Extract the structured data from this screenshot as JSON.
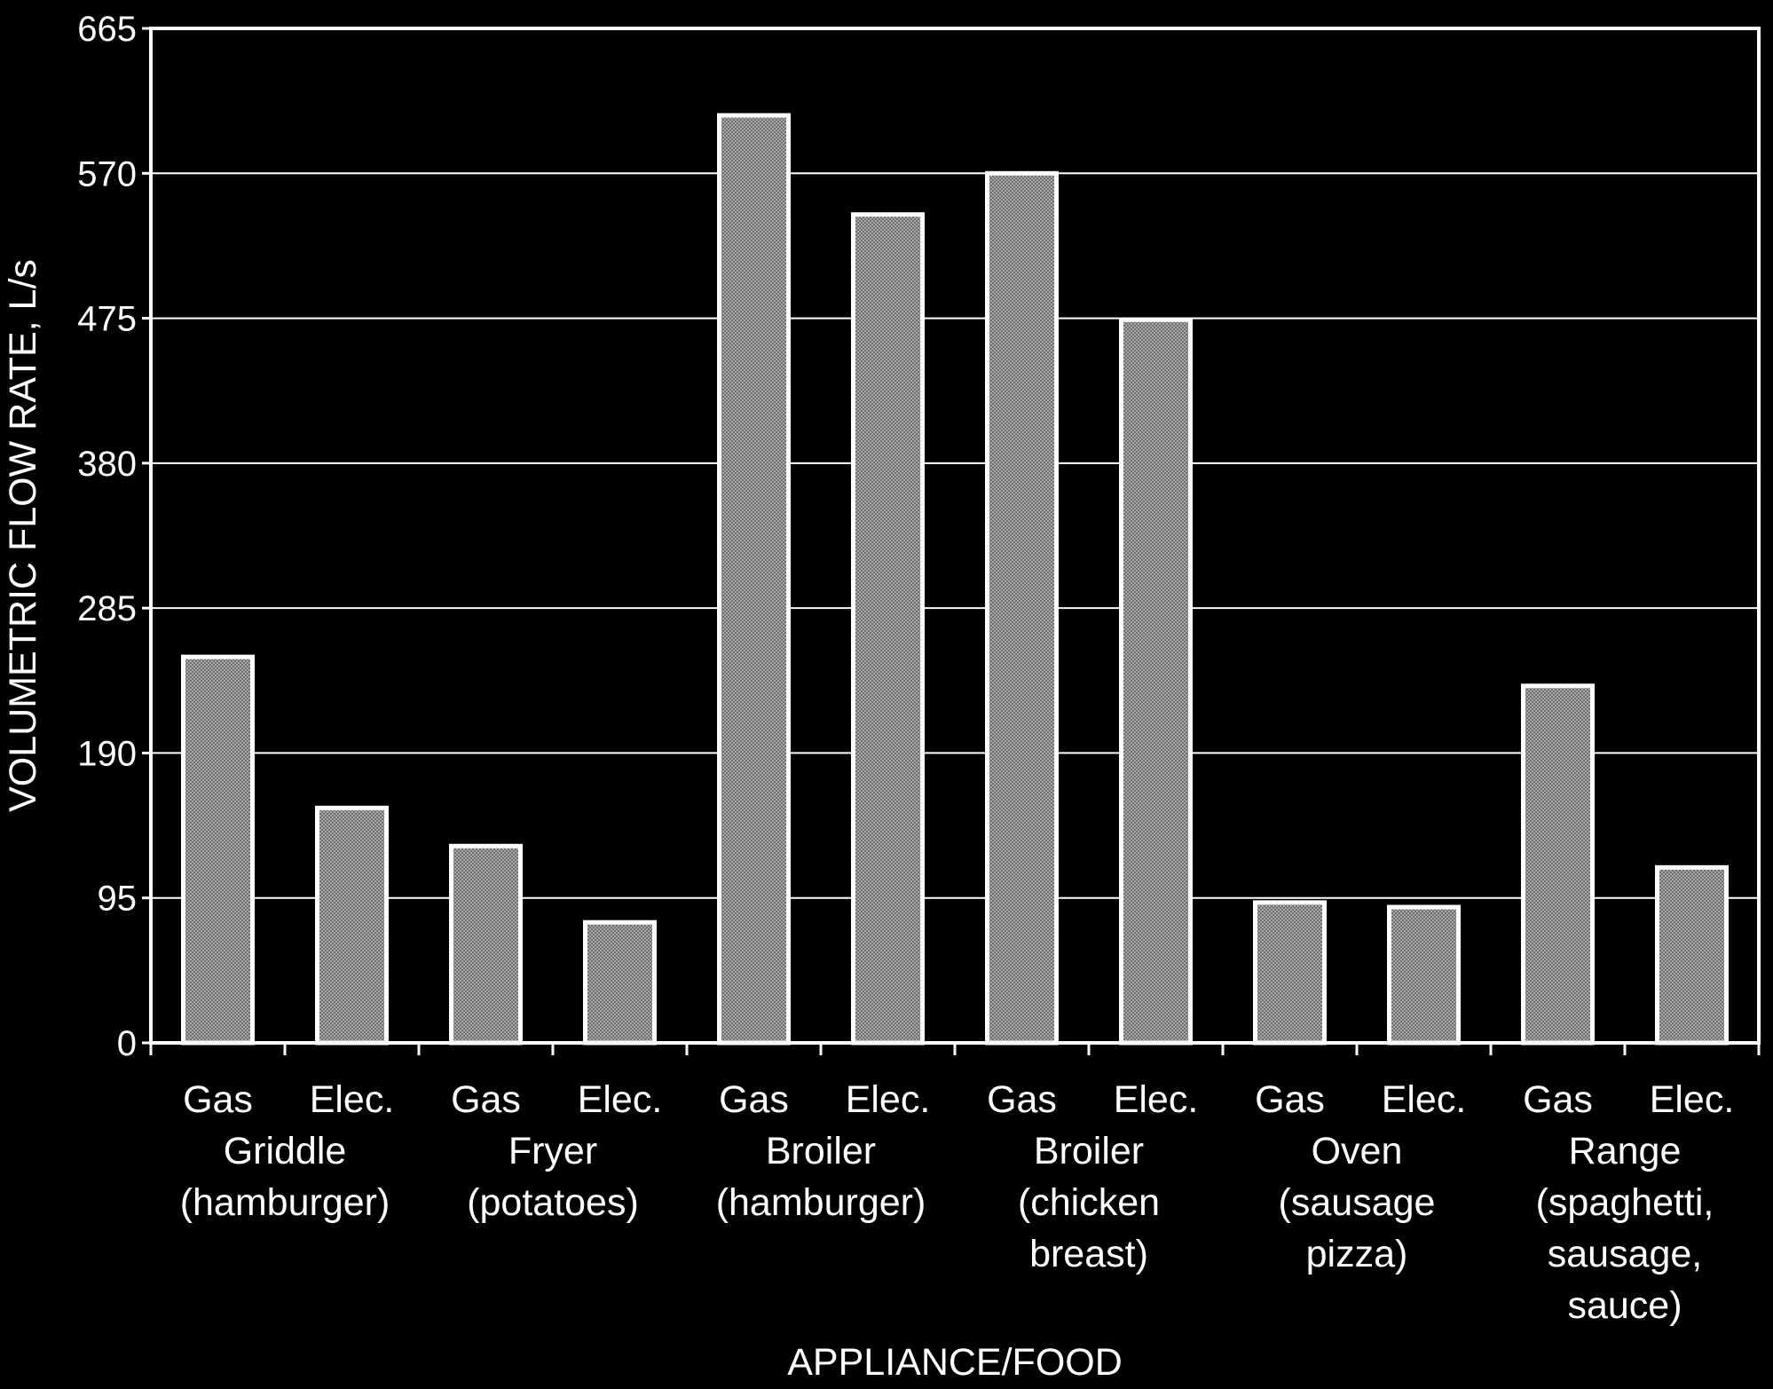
{
  "chart_data": {
    "type": "bar",
    "title": "",
    "xlabel": "APPLIANCE/FOOD",
    "ylabel": "VOLUMETRIC FLOW RATE, L/s",
    "ylim": [
      0,
      665
    ],
    "yticks": [
      0,
      95,
      190,
      285,
      380,
      475,
      570,
      665
    ],
    "grid": true,
    "categories": [
      "Gas Griddle (hamburger)",
      "Elec. Griddle (hamburger)",
      "Gas Fryer (potatoes)",
      "Elec. Fryer (potatoes)",
      "Gas Broiler (hamburger)",
      "Elec. Broiler (hamburger)",
      "Gas Broiler (chicken breast)",
      "Elec. Broiler (chicken breast)",
      "Gas Oven (sausage pizza)",
      "Elec. Oven (sausage pizza)",
      "Gas Range (spaghetti, sausage, sauce)",
      "Elec. Range (spaghetti, sausage, sauce)"
    ],
    "bar_labels": [
      "Gas",
      "Elec.",
      "Gas",
      "Elec.",
      "Gas",
      "Elec.",
      "Gas",
      "Elec.",
      "Gas",
      "Elec.",
      "Gas",
      "Elec."
    ],
    "groups": [
      {
        "lines": [
          "Griddle",
          "(hamburger)"
        ]
      },
      {
        "lines": [
          "Fryer",
          "(potatoes)"
        ]
      },
      {
        "lines": [
          "Broiler",
          "(hamburger)"
        ]
      },
      {
        "lines": [
          "Broiler",
          "(chicken",
          "breast)"
        ]
      },
      {
        "lines": [
          "Oven",
          "(sausage",
          "pizza)"
        ]
      },
      {
        "lines": [
          "Range",
          "(spaghetti,",
          "sausage,",
          "sauce)"
        ]
      }
    ],
    "values": [
      253,
      154,
      129,
      79,
      608,
      543,
      570,
      474,
      92,
      89,
      234,
      115
    ],
    "colors": {
      "background": "#000000",
      "bar_fill": "#909090",
      "bar_stroke": "#ffffff",
      "grid": "#ffffff"
    }
  }
}
